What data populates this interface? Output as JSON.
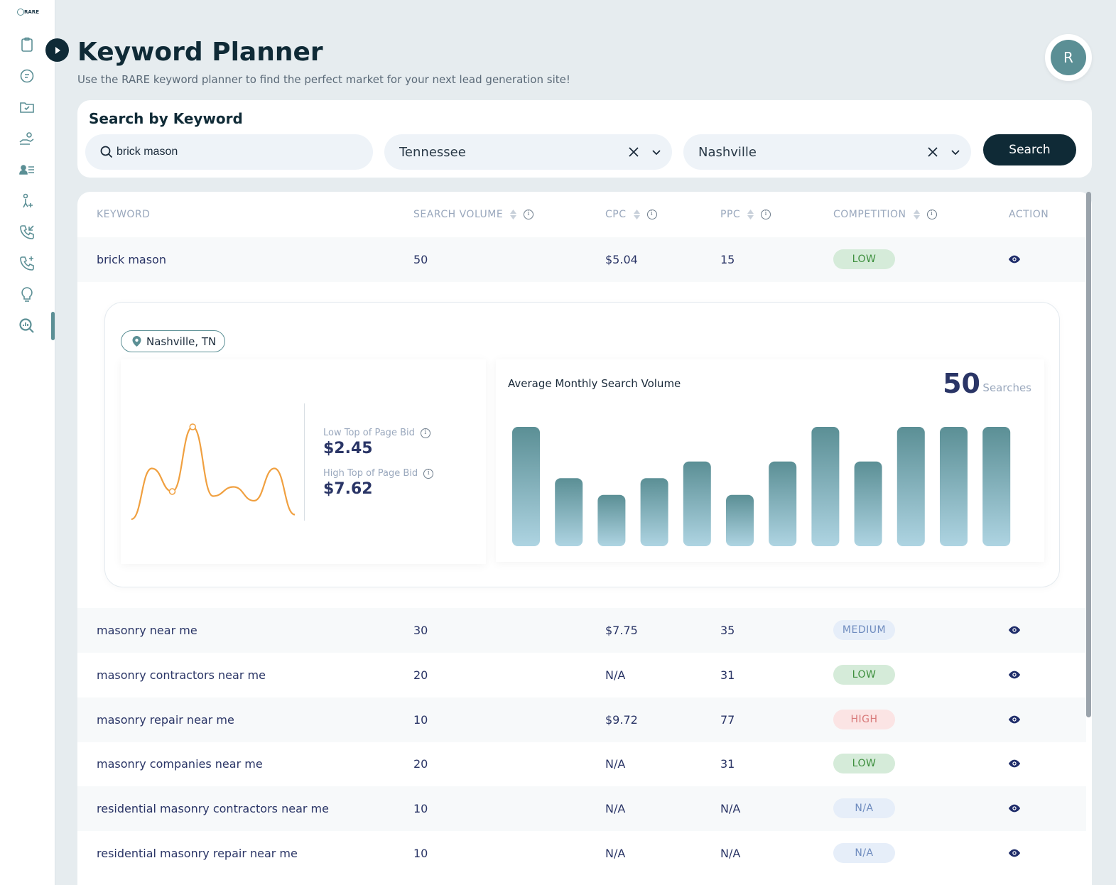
{
  "sidebar": {
    "logo": "RARE",
    "icons": [
      "clipboard-icon",
      "chat-dollar-icon",
      "folder-check-icon",
      "hand-coin-icon",
      "contact-list-icon",
      "user-add-icon",
      "phone-incoming-icon",
      "phone-add-icon",
      "lightbulb-icon",
      "keyword-search-icon"
    ]
  },
  "header": {
    "title": "Keyword Planner",
    "subtitle": "Use the RARE keyword planner to find the perfect market for your next lead generation site!",
    "avatar_initial": "R"
  },
  "search": {
    "heading": "Search by Keyword",
    "keyword_value": "brick mason",
    "state_value": "Tennessee",
    "city_value": "Nashville",
    "button_label": "Search"
  },
  "table": {
    "columns": [
      "KEYWORD",
      "SEARCH VOLUME",
      "CPC",
      "PPC",
      "COMPETITION",
      "ACTION"
    ],
    "rows": [
      {
        "keyword": "brick mason",
        "volume": "50",
        "cpc": "$5.04",
        "ppc": "15",
        "competition": "LOW"
      },
      {
        "keyword": "masonry near me",
        "volume": "30",
        "cpc": "$7.75",
        "ppc": "35",
        "competition": "MEDIUM"
      },
      {
        "keyword": "masonry contractors near me",
        "volume": "20",
        "cpc": "N/A",
        "ppc": "31",
        "competition": "LOW"
      },
      {
        "keyword": "masonry repair near me",
        "volume": "10",
        "cpc": "$9.72",
        "ppc": "77",
        "competition": "HIGH"
      },
      {
        "keyword": "masonry companies near me",
        "volume": "20",
        "cpc": "N/A",
        "ppc": "31",
        "competition": "LOW"
      },
      {
        "keyword": "residential masonry contractors near me",
        "volume": "10",
        "cpc": "N/A",
        "ppc": "N/A",
        "competition": "N/A"
      },
      {
        "keyword": "residential masonry repair near me",
        "volume": "10",
        "cpc": "N/A",
        "ppc": "N/A",
        "competition": "N/A"
      }
    ]
  },
  "detail": {
    "location": "Nashville, TN",
    "low_bid_label": "Low Top of Page Bid",
    "low_bid_value": "$2.45",
    "high_bid_label": "High Top of Page Bid",
    "high_bid_value": "$7.62",
    "volume_title": "Average Monthly Search Volume",
    "volume_number": "50",
    "volume_unit": "Searches"
  },
  "colors": {
    "accent": "#5b8f95",
    "dark": "#0f2a36",
    "line": "#f0a040"
  },
  "chart_data": [
    {
      "type": "line",
      "title": "",
      "values": [
        0,
        0.55,
        0.3,
        1,
        0.25,
        0.35,
        0.2,
        0.55,
        0.05
      ]
    },
    {
      "type": "bar",
      "title": "Average Monthly Search Volume",
      "values": [
        100,
        57,
        43,
        57,
        71,
        43,
        71,
        100,
        71,
        100,
        100,
        100
      ]
    }
  ]
}
